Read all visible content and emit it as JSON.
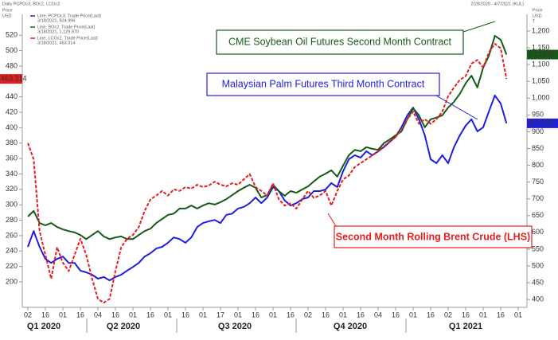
{
  "chart_data": {
    "type": "line",
    "title": "Daily PCPOc3, BOc2, LCOc2",
    "date_range": "2/28/2020 - 4/7/2021 (KUL)",
    "ylabel": [
      "Price",
      "USD"
    ],
    "y2label": [
      "Price",
      "USD",
      "T"
    ],
    "categories": [
      "02",
      null,
      null,
      "16",
      null,
      null,
      "01",
      null,
      null,
      "16",
      null,
      null,
      "04",
      null,
      null,
      "16",
      null,
      null,
      "01",
      null,
      null,
      "16",
      null,
      null,
      "01",
      null,
      null,
      "16",
      null,
      null,
      "01",
      null,
      null,
      "17",
      null,
      null,
      "01",
      null,
      null,
      "16",
      null,
      null,
      "01",
      null,
      null,
      "16",
      null,
      null,
      "02",
      null,
      null,
      "16",
      null,
      null,
      "01",
      null,
      null,
      "16",
      null,
      null,
      "04",
      null,
      null,
      "16",
      null,
      null,
      "01",
      null,
      null,
      "16",
      null,
      null,
      "02",
      null,
      null,
      "16",
      null,
      null,
      "01",
      null,
      null,
      "16",
      null,
      null,
      "01"
    ],
    "quarters": [
      "Q1 2020",
      "Q2 2020",
      "Q3 2020",
      "Q4 2020",
      "Q1 2021"
    ],
    "ylim": [
      168,
      545
    ],
    "yticks": [
      200,
      220,
      240,
      260,
      280,
      300,
      320,
      340,
      360,
      380,
      400,
      420,
      440,
      460,
      480,
      500,
      520
    ],
    "y2lim": [
      379,
      1245
    ],
    "y2ticks": [
      400,
      450,
      500,
      550,
      600,
      650,
      700,
      750,
      800,
      850,
      900,
      950,
      {
        "value": 1000,
        "label": "1,000"
      },
      {
        "value": 1050,
        "label": "1,050"
      },
      {
        "value": 1100,
        "label": "1,100"
      },
      {
        "value": 1150,
        "label": "1,150"
      },
      {
        "value": 1200,
        "label": "1,200"
      }
    ],
    "grid": false,
    "series": [
      {
        "name": "Line, PCPOc3, Trade Price(Last)",
        "detail": "3/18/2021, 924.996",
        "last_label": "924.996",
        "color": "#1e1ee0",
        "axis": "y2",
        "dash": false,
        "values": [
          557,
          604,
          557,
          521,
          509,
          521,
          528,
          509,
          509,
          486,
          481,
          474,
          462,
          467,
          457,
          467,
          474,
          486,
          497,
          509,
          528,
          538,
          552,
          557,
          569,
          585,
          580,
          569,
          585,
          616,
          628,
          633,
          637,
          628,
          652,
          656,
          671,
          676,
          687,
          704,
          687,
          704,
          735,
          723,
          695,
          680,
          687,
          699,
          704,
          723,
          723,
          728,
          747,
          735,
          782,
          818,
          830,
          823,
          842,
          830,
          842,
          854,
          870,
          885,
          913,
          949,
          972,
          937,
          889,
          818,
          806,
          830,
          806,
          854,
          889,
          918,
          937,
          901,
          913,
          961,
          1008,
          984,
          924.996,
          null,
          null
        ]
      },
      {
        "name": "Line, BOc2, Trade Price(Last)",
        "detail": "3/18/2021, 1,129.870",
        "last_label": "1,129.87",
        "color": "#175a17",
        "axis": "y2",
        "dash": false,
        "values": [
          647,
          664,
          628,
          621,
          628,
          616,
          609,
          604,
          600,
          592,
          580,
          592,
          604,
          588,
          580,
          585,
          588,
          580,
          580,
          592,
          604,
          611,
          628,
          640,
          652,
          656,
          671,
          671,
          680,
          671,
          680,
          687,
          683,
          690,
          699,
          711,
          723,
          733,
          742,
          733,
          704,
          711,
          742,
          723,
          709,
          723,
          718,
          728,
          737,
          752,
          766,
          775,
          785,
          766,
          799,
          830,
          846,
          842,
          854,
          849,
          846,
          866,
          877,
          889,
          901,
          937,
          970,
          949,
          913,
          937,
          942,
          949,
          972,
          989,
          1013,
          1044,
          1067,
          1032,
          1091,
          1127,
          1186,
          1174,
          1129.87,
          null,
          null
        ]
      },
      {
        "name": "Line, LCOc2, Trade Price(Last)",
        "detail": "3/18/2021, 463.314",
        "last_label": "463.314",
        "color": "#e41e1e",
        "axis": "y",
        "dash": true,
        "values": [
          380,
          359,
          266,
          235,
          204,
          245,
          225,
          214,
          235,
          256,
          235,
          204,
          178,
          173,
          178,
          214,
          245,
          256,
          261,
          271,
          292,
          307,
          312,
          318,
          312,
          320,
          318,
          323,
          321,
          326,
          323,
          325,
          330,
          326,
          324,
          328,
          326,
          333,
          340,
          323,
          318,
          312,
          328,
          307,
          299,
          302,
          295,
          307,
          318,
          309,
          312,
          318,
          299,
          318,
          333,
          338,
          349,
          354,
          359,
          364,
          369,
          376,
          382,
          388,
          398,
          411,
          421,
          405,
          411,
          405,
          411,
          421,
          441,
          452,
          462,
          467,
          483,
          488,
          478,
          498,
          509,
          503,
          463.314,
          null,
          null
        ]
      }
    ],
    "annotations": [
      "CME Soybean Oil Futures Second Month Contract",
      "Malaysian Palm Futures Third Month Contract",
      "Second Month Rolling Brent Crude (LHS)"
    ]
  }
}
